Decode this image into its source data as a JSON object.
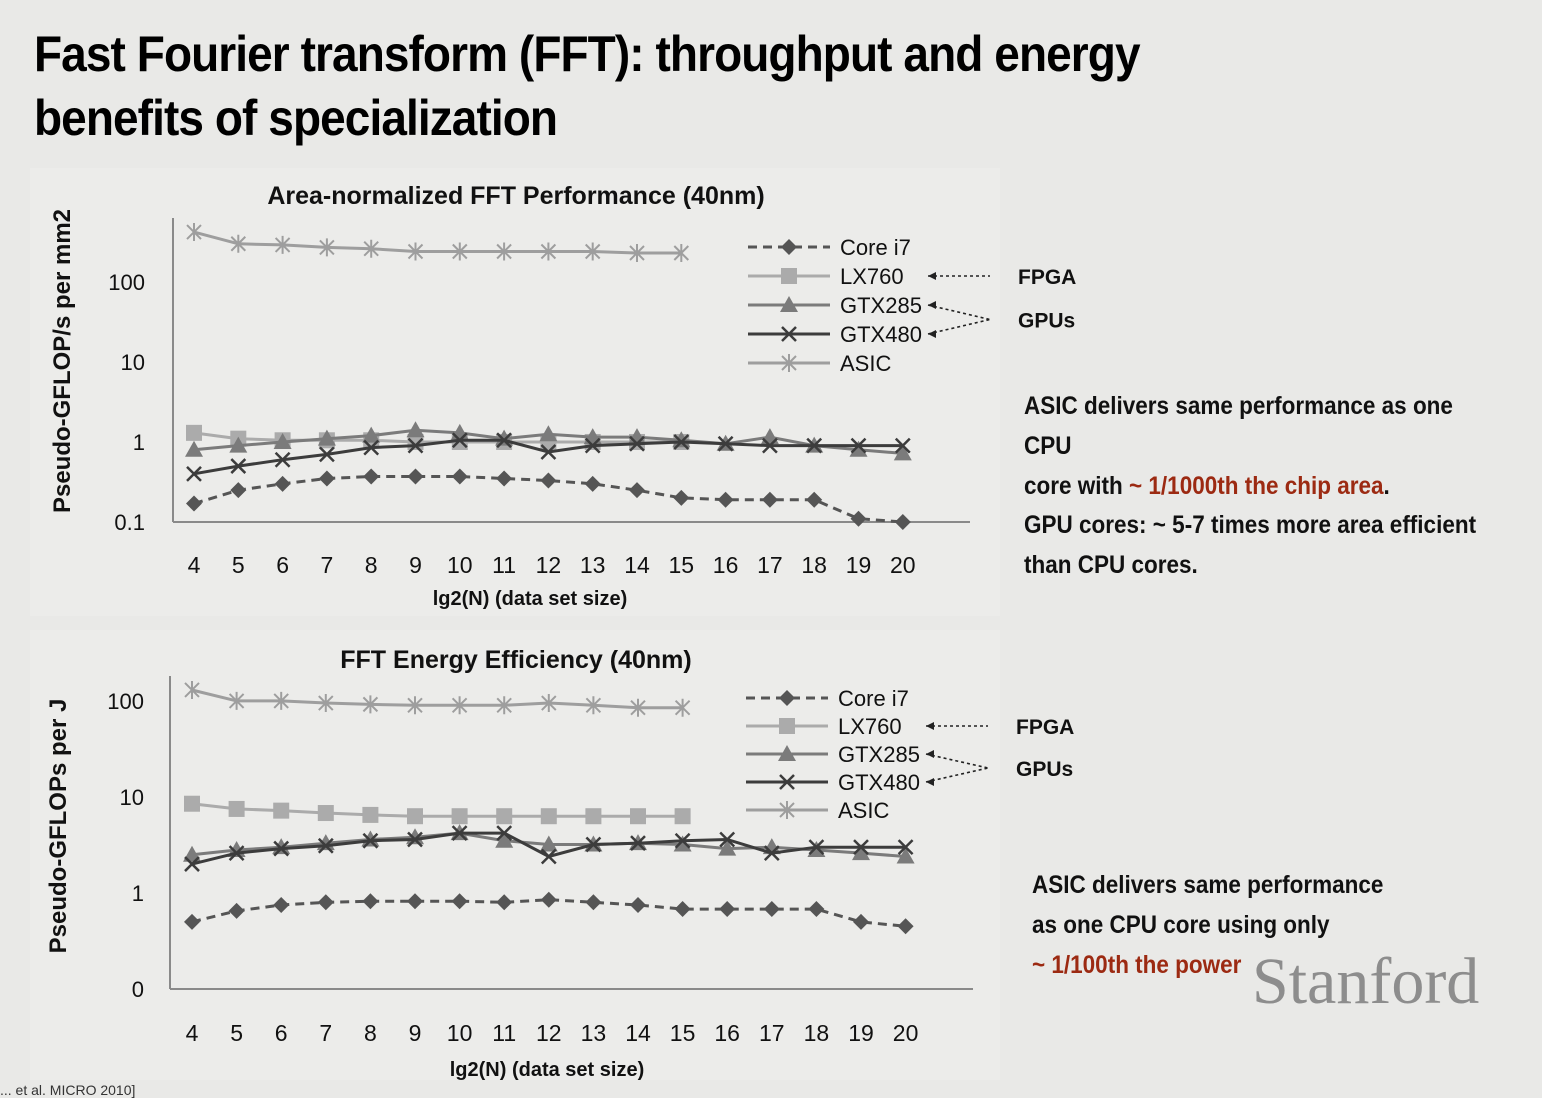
{
  "slide": {
    "title_line1": "Fast Fourier transform (FFT): throughput and energy",
    "title_line2": "benefits of specialization",
    "brand": "Stanford",
    "footer_cite": "... et al. MICRO 2010]"
  },
  "notes": {
    "perf_note": {
      "line1": "ASIC delivers same performance as one CPU",
      "line2_pre": "core with ",
      "line2_hl": "~ 1/1000th the chip area",
      "line2_post": "."
    },
    "gpu_note": {
      "line1": "GPU cores: ~ 5-7 times more area efficient",
      "line2": "than CPU cores."
    },
    "energy_note": {
      "line1": "ASIC delivers same performance",
      "line2": "as one CPU core using only",
      "line3_hl": "~ 1/100th the power"
    }
  },
  "colors": {
    "core_i7": "#555555",
    "lx760": "#ababab",
    "gtx285": "#7b7b7b",
    "gtx480": "#3c3c3c",
    "asic": "#9e9e9e",
    "highlight": "#9c2a12"
  },
  "chart_data": [
    {
      "type": "line",
      "title": "Area-normalized FFT Performance (40nm)",
      "xlabel": "lg2(N) (data set size)",
      "ylabel": "Pseudo-GFLOP/s per mm2",
      "yscale": "log",
      "ylim": [
        0.1,
        500
      ],
      "yticks": [
        0.1,
        1,
        10,
        100
      ],
      "ytick_labels": [
        "0.1",
        "1",
        "10",
        "100"
      ],
      "x": [
        4,
        5,
        6,
        7,
        8,
        9,
        10,
        11,
        12,
        13,
        14,
        15,
        16,
        17,
        18,
        19,
        20
      ],
      "legend_position": "top-right",
      "legend_groups": [
        {
          "label": "FPGA",
          "members": [
            "LX760"
          ]
        },
        {
          "label": "GPUs",
          "members": [
            "GTX285",
            "GTX480"
          ]
        }
      ],
      "series": [
        {
          "name": "Core i7",
          "marker": "diamond",
          "dash": true,
          "color_key": "core_i7",
          "values": [
            0.17,
            0.25,
            0.3,
            0.35,
            0.37,
            0.37,
            0.37,
            0.35,
            0.33,
            0.3,
            0.25,
            0.2,
            0.19,
            0.19,
            0.19,
            0.11,
            0.1
          ]
        },
        {
          "name": "LX760",
          "marker": "square",
          "dash": false,
          "color_key": "lx760",
          "values": [
            1.3,
            1.1,
            1.05,
            1.05,
            1.05,
            1.0,
            1.0,
            1.0,
            1.0,
            1.0,
            1.0,
            1.0,
            null,
            null,
            null,
            null,
            null
          ]
        },
        {
          "name": "GTX285",
          "marker": "triangle",
          "dash": false,
          "color_key": "gtx285",
          "values": [
            0.8,
            0.9,
            1.0,
            1.1,
            1.2,
            1.4,
            1.3,
            1.1,
            1.25,
            1.15,
            1.15,
            1.05,
            0.95,
            1.15,
            0.9,
            0.8,
            0.72
          ]
        },
        {
          "name": "GTX480",
          "marker": "x",
          "dash": false,
          "color_key": "gtx480",
          "values": [
            0.4,
            0.5,
            0.6,
            0.7,
            0.85,
            0.9,
            1.05,
            1.05,
            0.75,
            0.9,
            0.95,
            1.0,
            0.95,
            0.9,
            0.9,
            0.9,
            0.9
          ]
        },
        {
          "name": "ASIC",
          "marker": "asterisk",
          "dash": false,
          "color_key": "asic",
          "values": [
            420,
            300,
            290,
            270,
            260,
            240,
            240,
            240,
            240,
            240,
            230,
            230,
            null,
            null,
            null,
            null,
            null
          ]
        }
      ]
    },
    {
      "type": "line",
      "title": "FFT Energy Efficiency (40nm)",
      "xlabel": "lg2(N) (data set size)",
      "ylabel": "Pseudo-GFLOPs per J",
      "yscale": "log",
      "ylim": [
        0.1,
        150
      ],
      "yticks": [
        0.1,
        1,
        10,
        100
      ],
      "ytick_labels": [
        "0",
        "1",
        "10",
        "100"
      ],
      "x": [
        4,
        5,
        6,
        7,
        8,
        9,
        10,
        11,
        12,
        13,
        14,
        15,
        16,
        17,
        18,
        19,
        20
      ],
      "legend_position": "top-right",
      "legend_groups": [
        {
          "label": "FPGA",
          "members": [
            "LX760"
          ]
        },
        {
          "label": "GPUs",
          "members": [
            "GTX285",
            "GTX480"
          ]
        }
      ],
      "series": [
        {
          "name": "Core i7",
          "marker": "diamond",
          "dash": true,
          "color_key": "core_i7",
          "values": [
            0.5,
            0.65,
            0.75,
            0.8,
            0.82,
            0.82,
            0.82,
            0.8,
            0.85,
            0.8,
            0.75,
            0.68,
            0.68,
            0.68,
            0.68,
            0.5,
            0.45
          ]
        },
        {
          "name": "LX760",
          "marker": "square",
          "dash": false,
          "color_key": "lx760",
          "values": [
            8.5,
            7.5,
            7.2,
            6.8,
            6.5,
            6.3,
            6.3,
            6.3,
            6.3,
            6.3,
            6.3,
            6.3,
            null,
            null,
            null,
            null,
            null
          ]
        },
        {
          "name": "GTX285",
          "marker": "triangle",
          "dash": false,
          "color_key": "gtx285",
          "values": [
            2.5,
            2.8,
            3.0,
            3.3,
            3.6,
            3.8,
            4.2,
            3.5,
            3.2,
            3.2,
            3.3,
            3.2,
            2.9,
            3.0,
            2.8,
            2.6,
            2.4
          ]
        },
        {
          "name": "GTX480",
          "marker": "x",
          "dash": false,
          "color_key": "gtx480",
          "values": [
            2.0,
            2.6,
            2.9,
            3.1,
            3.5,
            3.6,
            4.2,
            4.2,
            2.4,
            3.2,
            3.3,
            3.5,
            3.6,
            2.6,
            3.0,
            3.0,
            3.0
          ]
        },
        {
          "name": "ASIC",
          "marker": "asterisk",
          "dash": false,
          "color_key": "asic",
          "values": [
            130,
            100,
            100,
            95,
            92,
            90,
            90,
            90,
            95,
            90,
            85,
            85,
            null,
            null,
            null,
            null,
            null
          ]
        }
      ]
    }
  ]
}
